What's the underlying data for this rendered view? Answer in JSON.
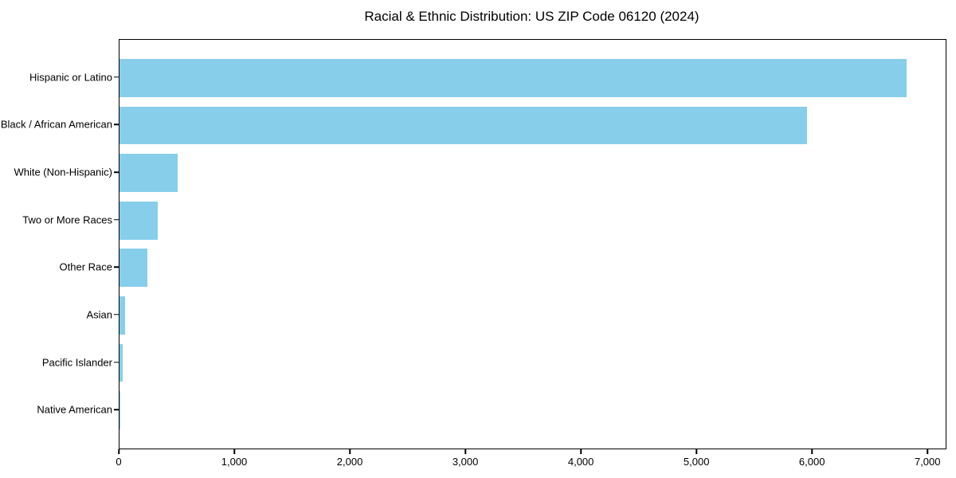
{
  "title": "Racial & Ethnic Distribution: US ZIP Code 06120 (2024)",
  "chart_data": {
    "type": "bar",
    "orientation": "horizontal",
    "title": "Racial & Ethnic Distribution: US ZIP Code 06120 (2024)",
    "xlabel": "",
    "ylabel": "",
    "categories": [
      "Hispanic or Latino",
      "Black / African American",
      "White (Non-Hispanic)",
      "Two or More Races",
      "Other Race",
      "Asian",
      "Pacific Islander",
      "Native American"
    ],
    "values": [
      6810,
      5950,
      505,
      330,
      240,
      50,
      28,
      5
    ],
    "xlim": [
      0,
      7150
    ],
    "x_ticks": [
      0,
      1000,
      2000,
      3000,
      4000,
      5000,
      6000,
      7000
    ],
    "x_tick_labels": [
      "0",
      "1,000",
      "2,000",
      "3,000",
      "4,000",
      "5,000",
      "6,000",
      "7,000"
    ],
    "bar_color": "#87CEEB",
    "background_color": "#ffffff",
    "axis_color": "#000000",
    "grid": false,
    "legend_position": "none"
  }
}
